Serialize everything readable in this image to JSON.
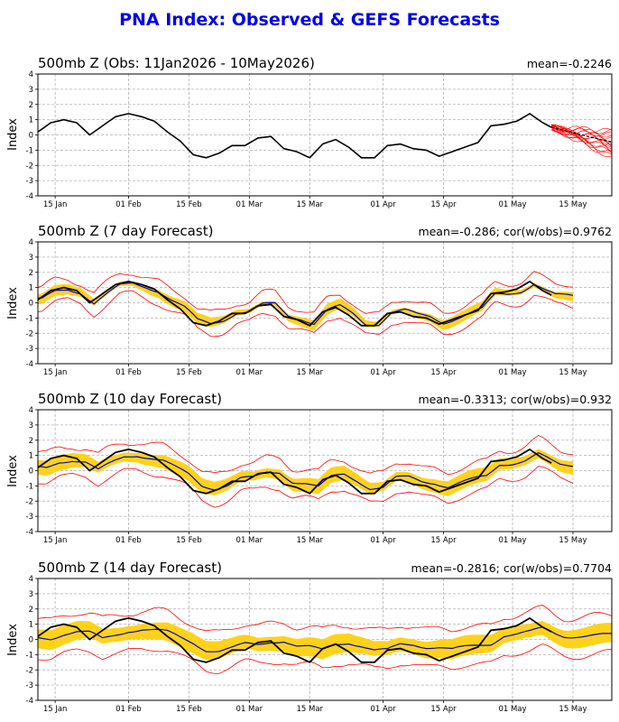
{
  "figure_title": "PNA Index: Observed & GEFS Forecasts",
  "colors": {
    "title": "#0000ee",
    "observed": "#000000",
    "ensemble_mean": "#0000cc",
    "members_spread": "#ff0000",
    "spread_band": "#ffd21a",
    "grid": "#b0b0b0"
  },
  "chart_data": [
    {
      "type": "line",
      "title": "500mb Z (Obs: 11Jan2026 - 10May2026)",
      "stats": "mean=-0.2246",
      "ylabel": "Index",
      "ylim": [
        -4,
        4
      ],
      "yticks": [
        "4",
        "3",
        "2",
        "1",
        "0",
        "-1",
        "-2",
        "-3",
        "-4"
      ],
      "xticks": [
        "15 Jan",
        "01 Feb",
        "15 Feb",
        "01 Mar",
        "15 Mar",
        "01 Apr",
        "15 Apr",
        "01 May",
        "15 May"
      ],
      "grid": true,
      "series": [
        {
          "x": [
            0,
            3,
            6,
            9,
            12,
            15,
            18,
            21,
            24,
            27,
            30,
            33,
            36,
            39,
            42,
            45,
            48,
            51,
            54,
            57,
            60,
            63,
            66,
            69,
            72,
            75,
            78,
            81,
            84,
            87,
            90,
            93,
            96,
            99,
            102,
            105,
            108,
            111,
            114,
            117,
            119
          ],
          "y": [
            0.2,
            0.8,
            1.0,
            0.8,
            0.0,
            0.6,
            1.2,
            1.4,
            1.2,
            0.9,
            0.2,
            -0.4,
            -1.3,
            -1.5,
            -1.2,
            -0.7,
            -0.7,
            -0.2,
            -0.1,
            -0.9,
            -1.1,
            -1.5,
            -0.6,
            -0.3,
            -0.8,
            -1.5,
            -1.5,
            -0.7,
            -0.6,
            -0.9,
            -1.0,
            -1.4,
            -1.1,
            -0.8,
            -0.5,
            0.6,
            0.7,
            0.9,
            1.4,
            0.8,
            0.5
          ]
        }
      ]
    },
    {
      "type": "line",
      "title": "500mb Z (7 day Forecast)",
      "stats": "mean=-0.286; cor(w/obs)=0.9762",
      "ylabel": "Index",
      "ylim": [
        -4,
        4
      ],
      "yticks": [
        "4",
        "3",
        "2",
        "1",
        "0",
        "-1",
        "-2",
        "-3",
        "-4"
      ],
      "xticks": [
        "15 Jan",
        "01 Feb",
        "15 Feb",
        "01 Mar",
        "15 Mar",
        "01 Apr",
        "15 Apr",
        "01 May",
        "15 May"
      ],
      "grid": true,
      "series": []
    },
    {
      "type": "line",
      "title": "500mb Z (10 day Forecast)",
      "stats": "mean=-0.3313; cor(w/obs)=0.932",
      "ylabel": "Index",
      "ylim": [
        -4,
        4
      ],
      "yticks": [
        "4",
        "3",
        "2",
        "1",
        "0",
        "-1",
        "-2",
        "-3",
        "-4"
      ],
      "xticks": [
        "15 Jan",
        "01 Feb",
        "15 Feb",
        "01 Mar",
        "15 Mar",
        "01 Apr",
        "15 Apr",
        "01 May",
        "15 May"
      ],
      "grid": true,
      "series": []
    },
    {
      "type": "line",
      "title": "500mb Z (14 day Forecast)",
      "stats": "mean=-0.2816; cor(w/obs)=0.7704",
      "ylabel": "Index",
      "ylim": [
        -4,
        4
      ],
      "yticks": [
        "4",
        "3",
        "2",
        "1",
        "0",
        "-1",
        "-2",
        "-3",
        "-4"
      ],
      "xticks": [
        "15 Jan",
        "01 Feb",
        "15 Feb",
        "01 Mar",
        "15 Mar",
        "01 Apr",
        "15 Apr",
        "01 May",
        "15 May"
      ],
      "grid": true,
      "series": []
    }
  ]
}
